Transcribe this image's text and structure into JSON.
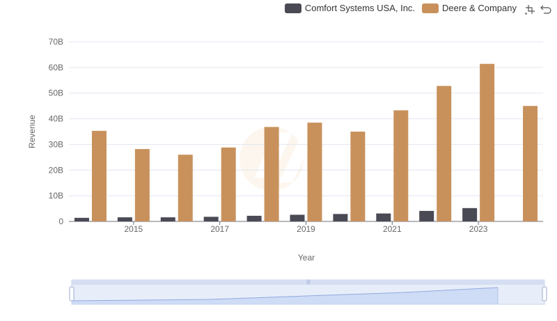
{
  "legend": {
    "items": [
      {
        "label": "Comfort Systems USA, Inc.",
        "color": "#4a4a55"
      },
      {
        "label": "Deere & Company",
        "color": "#c8915c"
      }
    ]
  },
  "toolbox": {
    "icons": [
      "zoom-icon",
      "restore-icon"
    ]
  },
  "chart_data": {
    "type": "bar",
    "xlabel": "Year",
    "ylabel": "Revenue",
    "ylim": [
      0,
      70000000000
    ],
    "y_ticks": [
      "0",
      "10B",
      "20B",
      "30B",
      "40B",
      "50B",
      "60B",
      "70B"
    ],
    "x_tick_labels": [
      "2015",
      "2017",
      "2019",
      "2021",
      "2023"
    ],
    "categories": [
      "2014",
      "2015",
      "2016",
      "2017",
      "2018",
      "2019",
      "2020",
      "2021",
      "2022",
      "2023",
      "2024"
    ],
    "series": [
      {
        "name": "Comfort Systems USA, Inc.",
        "color": "#4a4a55",
        "values": [
          1400000000,
          1600000000,
          1600000000,
          1800000000,
          2200000000,
          2600000000,
          2900000000,
          3100000000,
          4100000000,
          5200000000,
          null
        ]
      },
      {
        "name": "Deere & Company",
        "color": "#c8915c",
        "values": [
          35300000000,
          28200000000,
          26000000000,
          28800000000,
          36800000000,
          38500000000,
          35000000000,
          43300000000,
          52800000000,
          61400000000,
          45000000000
        ]
      }
    ],
    "grid": true,
    "legend_position": "top-right"
  }
}
